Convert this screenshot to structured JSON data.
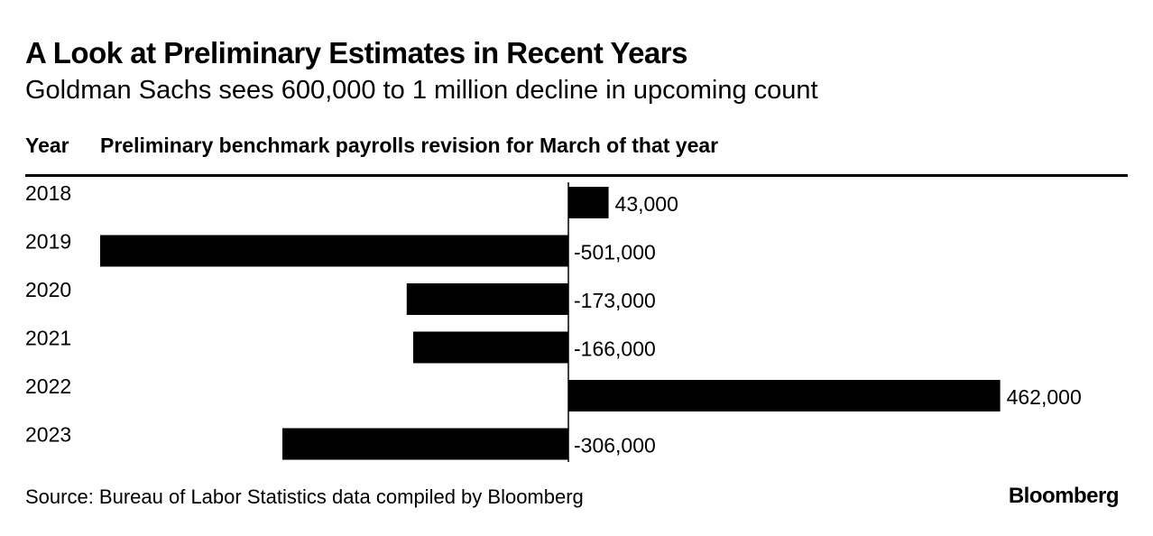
{
  "header": {
    "title": "A Look at Preliminary Estimates in Recent Years",
    "subtitle": "Goldman Sachs sees 600,000 to 1 million decline in upcoming count"
  },
  "table": {
    "col_year": "Year",
    "col_revision": "Preliminary benchmark payrolls revision for March of that year"
  },
  "footer": {
    "source": "Source: Bureau of Labor Statistics data compiled by Bloomberg",
    "brand": "Bloomberg"
  },
  "chart_data": {
    "type": "bar",
    "orientation": "horizontal",
    "categories": [
      "2018",
      "2019",
      "2020",
      "2021",
      "2022",
      "2023"
    ],
    "values": [
      43000,
      -501000,
      -173000,
      -166000,
      462000,
      -306000
    ],
    "data_labels": [
      "43,000",
      "-501,000",
      "-173,000",
      "-166,000",
      "462,000",
      "-306,000"
    ],
    "bar_color": "#000000",
    "grid": false,
    "legend": "none"
  }
}
